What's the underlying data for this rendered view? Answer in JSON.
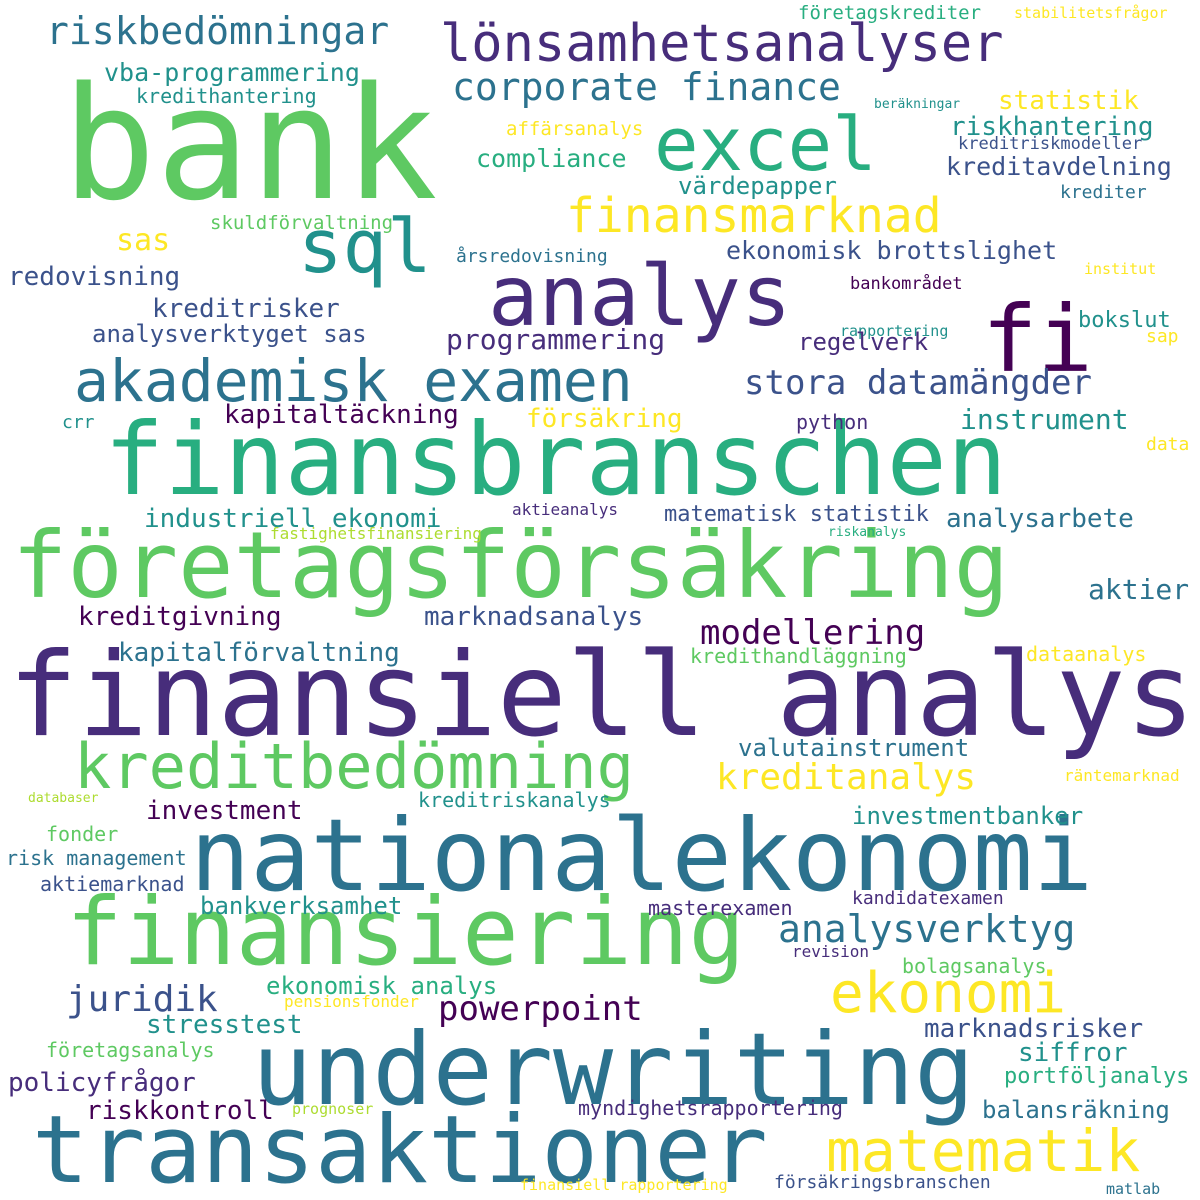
{
  "words": [
    "bank",
    "lönsamhetsanalyser",
    "riskbedömningar",
    "excel",
    "corporate finance",
    "vba-programmering",
    "kredithantering",
    "finansmarknad",
    "sql",
    "analys",
    "fi",
    "akademisk examen",
    "stora datamängder",
    "finansbranschen",
    "företagsförsäkring",
    "finansiell analys",
    "kreditbedömning",
    "kreditanalys",
    "nationalekonomi",
    "finansiering",
    "ekonomi",
    "underwriting",
    "matematik",
    "transaktioner",
    "företagskrediter",
    "stabilitetsfrågor",
    "beräkningar",
    "statistik",
    "riskhantering",
    "affärsanalys",
    "kreditriskmodeller",
    "compliance",
    "kreditavdelning",
    "värdepapper",
    "krediter",
    "skuldförvaltning",
    "sas",
    "ekonomisk brottslighet",
    "årsredovisning",
    "institut",
    "redovisning",
    "bankområdet",
    "rapportering",
    "kreditrisker",
    "bokslut",
    "analysverktyget sas",
    "sap",
    "programmering",
    "regelverk",
    "kapitaltäckning",
    "instrument",
    "försäkring",
    "crr",
    "python",
    "data",
    "industriell ekonomi",
    "aktieanalys",
    "matematisk statistik",
    "analysarbete",
    "fastighetsfinansiering",
    "riskanalys",
    "kreditgivning",
    "marknadsanalys",
    "aktier",
    "modellering",
    "kapitalförvaltning",
    "kredithandläggning",
    "dataanalys",
    "valutainstrument",
    "investment",
    "räntemarknad",
    "databaser",
    "kreditriskanalys",
    "investmentbanker",
    "fonder",
    "risk management",
    "aktiemarknad",
    "kandidatexamen",
    "bankverksamhet",
    "masterexamen",
    "analysverktyg",
    "revision",
    "bolagsanalys",
    "juridik",
    "ekonomisk analys",
    "pensionsfonder",
    "powerpoint",
    "stresstest",
    "marknadsrisker",
    "företagsanalys",
    "siffror",
    "policyfrågor",
    "portföljanalys",
    "riskkontroll",
    "prognoser",
    "myndighetsrapportering",
    "balansräkning",
    "finansiell rapportering",
    "försäkringsbranschen",
    "matlab"
  ],
  "colors": [
    "#440154",
    "#472d7b",
    "#3b528b",
    "#2c728e",
    "#21918c",
    "#28ae80",
    "#5ec962",
    "#addc30",
    "#fde725"
  ]
}
